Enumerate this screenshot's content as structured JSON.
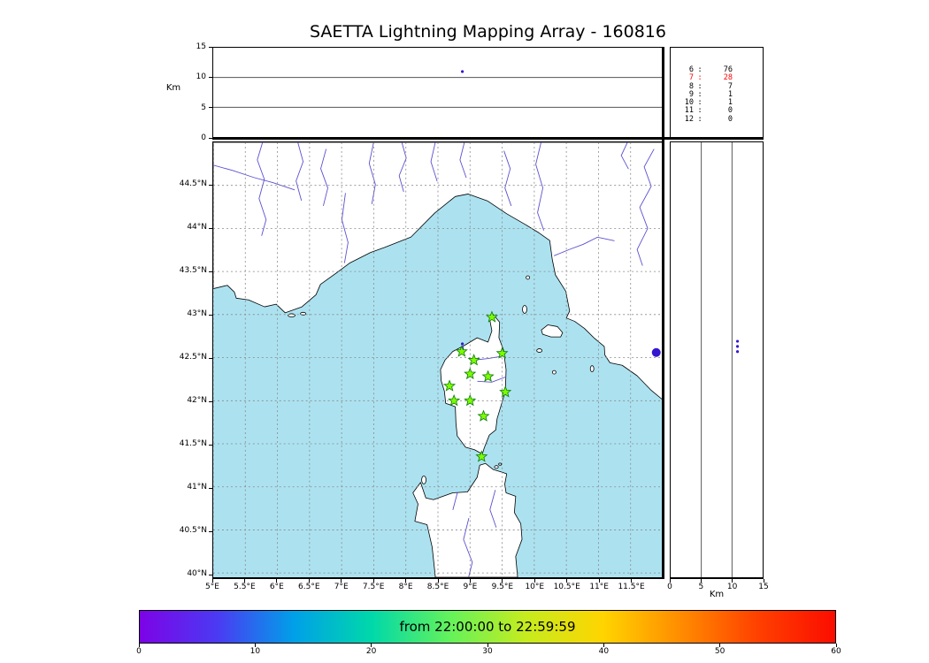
{
  "title": "SAETTA Lightning Mapping Array - 160816",
  "colors": {
    "sea": "#ace2f0",
    "land": "#ffffff",
    "coastline": "#000000",
    "river": "#5b4fd0",
    "grid": "#888888",
    "station_fill": "#7cfc00",
    "station_edge": "#0a7a0a",
    "event": "#3318d0",
    "count_highlight": "#ff0000"
  },
  "axes": {
    "alt_lon": {
      "ylabel": "Km",
      "ticks": [
        0,
        5,
        10,
        15
      ]
    },
    "alt_lat": {
      "xlabel": "Km",
      "ticks": [
        0,
        5,
        10,
        15
      ]
    },
    "map": {
      "lat_ticks": [
        40,
        40.5,
        41,
        41.5,
        42,
        42.5,
        43,
        43.5,
        44,
        44.5
      ],
      "lon_ticks": [
        5,
        5.5,
        6,
        6.5,
        7,
        7.5,
        8,
        8.5,
        9,
        9.5,
        10,
        10.5,
        11,
        11.5
      ],
      "lat_suffix": "°N",
      "lon_suffix": "°E"
    }
  },
  "station_counts": {
    "separator": ":",
    "rows": [
      {
        "id": "6",
        "count": "76",
        "highlight": false
      },
      {
        "id": "7",
        "count": "28",
        "highlight": true
      },
      {
        "id": "8",
        "count": "7",
        "highlight": false
      },
      {
        "id": "9",
        "count": "1",
        "highlight": false
      },
      {
        "id": "10",
        "count": "1",
        "highlight": false
      },
      {
        "id": "11",
        "count": "0",
        "highlight": false
      },
      {
        "id": "12",
        "count": "0",
        "highlight": false
      }
    ]
  },
  "colorbar": {
    "label": "from 22:00:00 to 22:59:59",
    "ticks": [
      0,
      10,
      20,
      30,
      40,
      50,
      60
    ],
    "gradient": [
      "#7d03e6",
      "#4b3af3",
      "#00a0e8",
      "#00d8aa",
      "#63f25c",
      "#c6ec1e",
      "#ffd400",
      "#ff8c00",
      "#ff4000",
      "#fb0d00"
    ]
  },
  "chart_data": {
    "type": "scatter",
    "title": "SAETTA Lightning Mapping Array - 160816",
    "date_yymmdd": "160816",
    "time_window": {
      "from": "22:00:00",
      "to": "22:59:59"
    },
    "colorbar_scale": {
      "unit": "minutes",
      "range": [
        0,
        60
      ]
    },
    "map_extent": {
      "lon_deg_e": [
        5.0,
        12.0
      ],
      "lat_deg_n": [
        39.95,
        45.0
      ]
    },
    "altitude_km_range": [
      0,
      15
    ],
    "station_source_counts": [
      {
        "station": 6,
        "count": 76
      },
      {
        "station": 7,
        "count": 28
      },
      {
        "station": 8,
        "count": 7
      },
      {
        "station": 9,
        "count": 1
      },
      {
        "station": 10,
        "count": 1
      },
      {
        "station": 11,
        "count": 0
      },
      {
        "station": 12,
        "count": 0
      }
    ],
    "stations": [
      {
        "lon": 9.34,
        "lat": 42.97
      },
      {
        "lon": 8.87,
        "lat": 42.57
      },
      {
        "lon": 9.06,
        "lat": 42.47
      },
      {
        "lon": 9.5,
        "lat": 42.55
      },
      {
        "lon": 9.0,
        "lat": 42.31
      },
      {
        "lon": 9.28,
        "lat": 42.28
      },
      {
        "lon": 8.68,
        "lat": 42.17
      },
      {
        "lon": 9.55,
        "lat": 42.1
      },
      {
        "lon": 8.75,
        "lat": 42.0
      },
      {
        "lon": 9.0,
        "lat": 42.0
      },
      {
        "lon": 9.21,
        "lat": 41.82
      },
      {
        "lon": 9.18,
        "lat": 41.35
      }
    ],
    "events": {
      "alt_lon_points": [
        {
          "lon": 8.88,
          "alt_km": 11.0
        }
      ],
      "map_points": [
        {
          "lon": 11.9,
          "lat": 42.56,
          "size": "large"
        },
        {
          "lon": 8.88,
          "lat": 42.66,
          "size": "small"
        },
        {
          "lon": 8.88,
          "lat": 42.61,
          "size": "small"
        }
      ],
      "alt_lat_points": [
        {
          "alt_km": 10.9,
          "lat": 42.69
        },
        {
          "alt_km": 10.9,
          "lat": 42.63
        },
        {
          "alt_km": 10.9,
          "lat": 42.57
        }
      ]
    }
  }
}
